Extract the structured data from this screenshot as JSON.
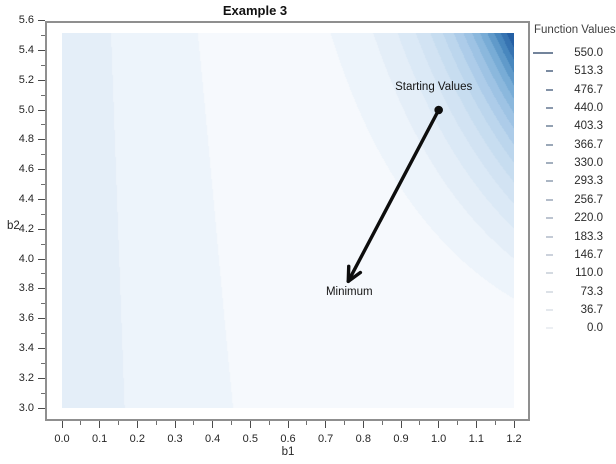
{
  "title": "Example 3",
  "axes": {
    "x": {
      "label": "b1",
      "ticks": [
        "0.0",
        "0.1",
        "0.2",
        "0.3",
        "0.4",
        "0.5",
        "0.6",
        "0.7",
        "0.8",
        "0.9",
        "1.0",
        "1.1",
        "1.2"
      ]
    },
    "y": {
      "label": "b2",
      "ticks": [
        "3.0",
        "3.2",
        "3.4",
        "3.6",
        "3.8",
        "4.0",
        "4.2",
        "4.4",
        "4.6",
        "4.8",
        "5.0",
        "5.2",
        "5.4",
        "5.6"
      ]
    }
  },
  "legend": {
    "title": "Function Values",
    "values": [
      "550.0",
      "513.3",
      "476.7",
      "440.0",
      "403.3",
      "366.7",
      "330.0",
      "293.3",
      "256.7",
      "220.0",
      "183.3",
      "146.7",
      "110.0",
      "73.3",
      "36.7",
      "0.0"
    ]
  },
  "annotations": {
    "starting": {
      "label": "Starting Values",
      "b1": 1.0,
      "b2": 5.0
    },
    "minimum": {
      "label": "Minimum",
      "b1": 0.76,
      "b2": 3.85
    }
  },
  "colors": {
    "frame": "#8f8f8f",
    "text": "#262626",
    "annotation": "#0d0d0d",
    "band_colors": [
      "#f6f9fd",
      "#edf4fb",
      "#e4eef8",
      "#dbe9f6",
      "#d2e3f3",
      "#c7ddf0",
      "#bcd6ed",
      "#adcce9",
      "#9ec3e4",
      "#8bb8dd",
      "#78acd6",
      "#609aca",
      "#4887be",
      "#3673b1",
      "#245fa4"
    ],
    "legend_swatch_dark": "#73849b",
    "legend_swatch_light": "#eceff3"
  },
  "chart_data": {
    "type": "heatmap",
    "subtype": "filled_contour",
    "title": "Example 3",
    "xlabel": "b1",
    "ylabel": "b2",
    "xlim": [
      0.0,
      1.2
    ],
    "ylim": [
      3.0,
      5.6
    ],
    "x_ticks": [
      0.0,
      0.1,
      0.2,
      0.3,
      0.4,
      0.5,
      0.6,
      0.7,
      0.8,
      0.9,
      1.0,
      1.1,
      1.2
    ],
    "y_ticks": [
      3.0,
      3.2,
      3.4,
      3.6,
      3.8,
      4.0,
      4.2,
      4.4,
      4.6,
      4.8,
      5.0,
      5.2,
      5.4,
      5.6
    ],
    "levels": [
      0.0,
      36.7,
      73.3,
      110.0,
      146.7,
      183.3,
      220.0,
      256.7,
      293.3,
      330.0,
      366.7,
      403.3,
      440.0,
      476.7,
      513.3,
      550.0
    ],
    "legend_title": "Function Values",
    "legend_position": "right",
    "grid": false,
    "points": [
      {
        "label": "Starting Values",
        "x": 1.0,
        "y": 5.0
      },
      {
        "label": "Minimum",
        "x": 0.76,
        "y": 3.85
      }
    ],
    "surface_summary": {
      "minimum": {
        "b1": 0.76,
        "b2": 3.85,
        "value": 0
      },
      "maximum_region": {
        "b1": 1.2,
        "b2": 5.5,
        "value": 550
      },
      "left_edge_value_estimate": 100,
      "shape": "values rise steeply toward the upper-right corner (dense diagonal blue bands) and mildly toward the left edge (light near-vertical bands); broad near-white basin around the minimum"
    }
  }
}
